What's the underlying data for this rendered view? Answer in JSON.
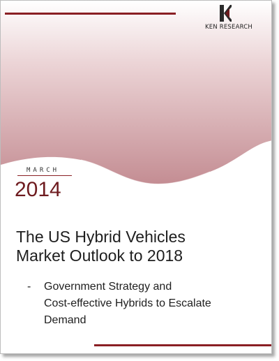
{
  "header": {
    "brand": "KEN RESEARCH",
    "logo_icon": "ken-research-k-logo"
  },
  "date": {
    "month": "MARCH",
    "year": "2014"
  },
  "title": {
    "line1": "The US Hybrid Vehicles",
    "line2": "Market Outlook to 2018"
  },
  "subtitle": {
    "dash": "-",
    "line1": "Government Strategy and",
    "line2": "Cost-effective Hybrids to Escalate",
    "line3": "Demand"
  },
  "colors": {
    "accent": "#8a1f24",
    "gradient_dark": "#c9959a",
    "gradient_light": "#ffffff"
  }
}
